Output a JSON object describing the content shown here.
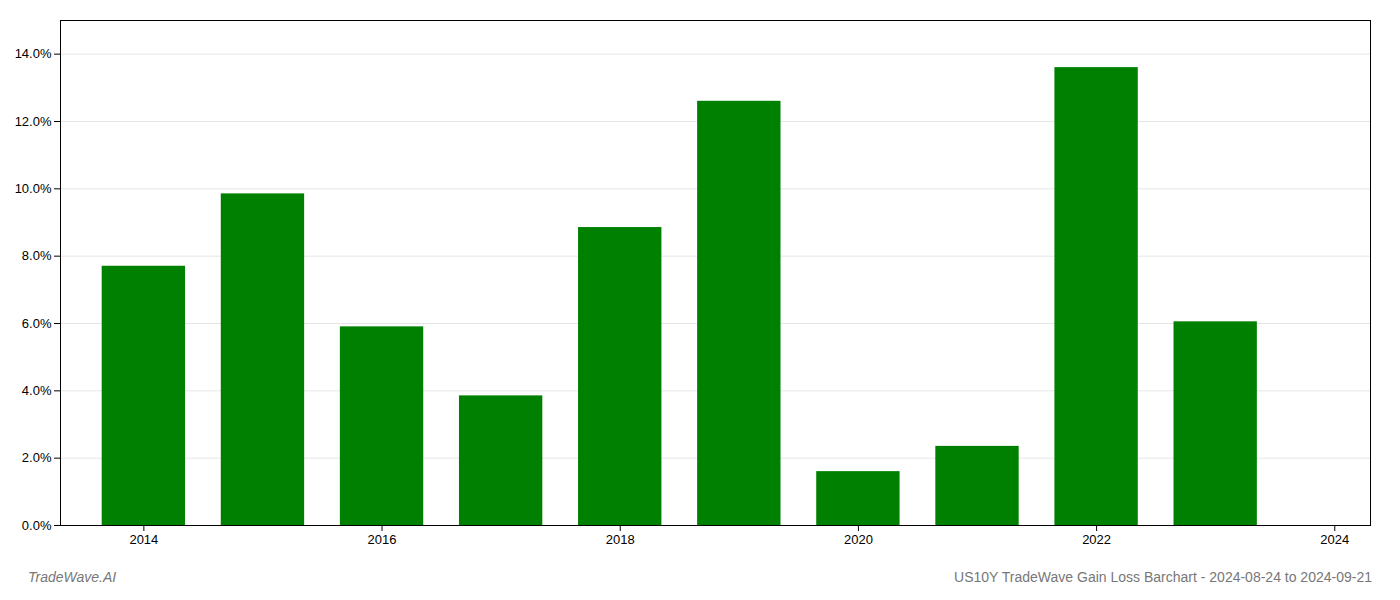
{
  "chart_data": {
    "type": "bar",
    "x": [
      2014,
      2015,
      2016,
      2017,
      2018,
      2019,
      2020,
      2021,
      2022,
      2023
    ],
    "values": [
      0.077,
      0.0985,
      0.059,
      0.0385,
      0.0885,
      0.126,
      0.016,
      0.0235,
      0.136,
      0.0605
    ],
    "color": "#008000",
    "xlim": [
      2013.3,
      2024.3
    ],
    "xticks": [
      2014,
      2016,
      2018,
      2020,
      2022,
      2024
    ],
    "ylim": [
      0,
      0.15
    ],
    "yticks": [
      {
        "value": 0.0,
        "label": "0.0%"
      },
      {
        "value": 0.02,
        "label": "2.0%"
      },
      {
        "value": 0.04,
        "label": "4.0%"
      },
      {
        "value": 0.06,
        "label": "6.0%"
      },
      {
        "value": 0.08,
        "label": "8.0%"
      },
      {
        "value": 0.1,
        "label": "10.0%"
      },
      {
        "value": 0.12,
        "label": "12.0%"
      },
      {
        "value": 0.14,
        "label": "14.0%"
      }
    ],
    "grid": true,
    "annotations": [
      "TradeWave.AI",
      "US10Y TradeWave Gain Loss Barchart - 2024-08-24 to 2024-09-21"
    ]
  }
}
